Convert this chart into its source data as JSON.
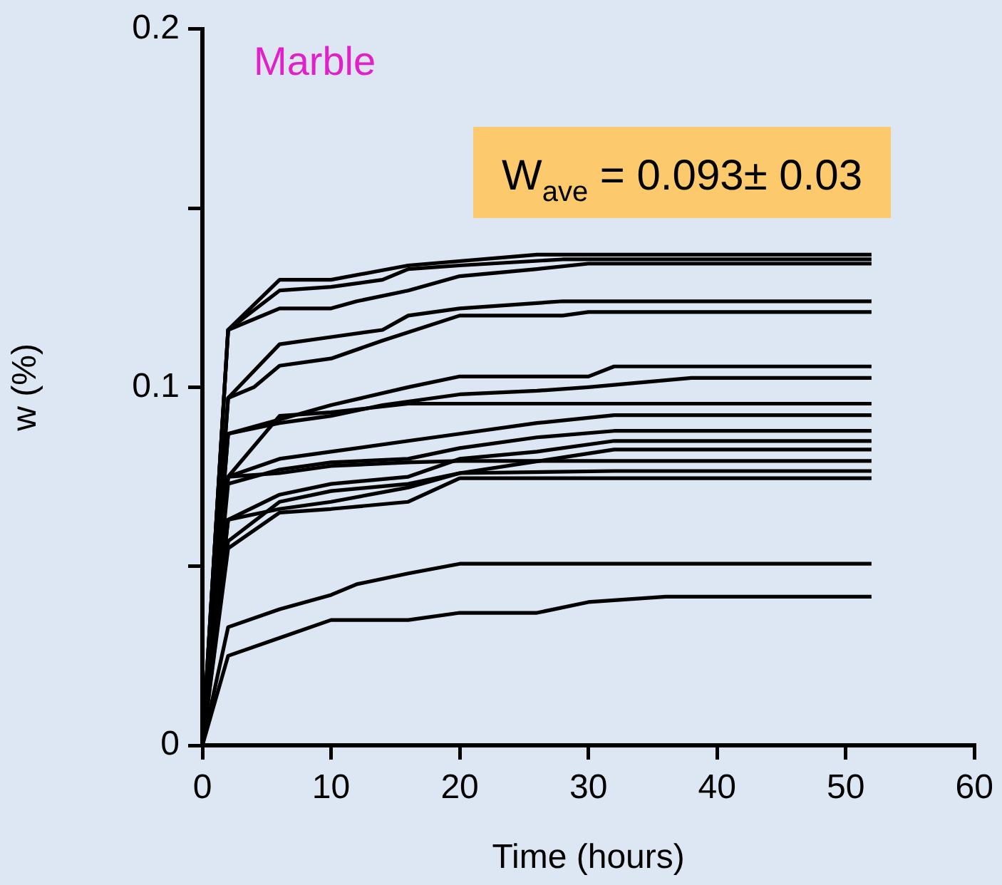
{
  "chart_data": {
    "type": "line",
    "title": "Marble",
    "xlabel": "Time (hours)",
    "ylabel": "w (%)",
    "annotations": [
      "W$_{ave}$ = 0.093± 0.03"
    ],
    "xlim": [
      0,
      60
    ],
    "xticks": [
      0,
      10,
      20,
      30,
      40,
      50,
      60
    ],
    "ylim": [
      0,
      0.2
    ],
    "yticks": [
      0,
      {
        "value": 0.05,
        "label": null
      },
      0.1,
      {
        "value": 0.15,
        "label": null
      },
      0.2
    ],
    "grid": false,
    "legend": false,
    "marker": "none",
    "line_style": "solid",
    "series": [
      {
        "color": "#000000",
        "x": [
          0,
          2,
          6,
          10,
          16,
          26,
          52
        ],
        "values": [
          0,
          0.116,
          0.13,
          0.13,
          0.134,
          0.137,
          0.137
        ]
      },
      {
        "color": "#000000",
        "x": [
          0,
          2,
          6,
          10,
          14,
          16,
          20,
          28,
          52
        ],
        "values": [
          0,
          0.116,
          0.127,
          0.128,
          0.13,
          0.133,
          0.134,
          0.1357,
          0.1357
        ]
      },
      {
        "color": "#000000",
        "x": [
          0,
          2,
          6,
          10,
          12,
          16,
          20,
          26,
          30,
          52
        ],
        "values": [
          0,
          0.116,
          0.122,
          0.122,
          0.124,
          0.127,
          0.131,
          0.133,
          0.1345,
          0.1345
        ]
      },
      {
        "color": "#000000",
        "x": [
          0,
          2,
          6,
          10,
          14,
          16,
          20,
          28,
          52
        ],
        "values": [
          0,
          0.097,
          0.112,
          0.114,
          0.116,
          0.12,
          0.122,
          0.124,
          0.124
        ]
      },
      {
        "color": "#000000",
        "x": [
          0,
          2,
          4,
          6,
          10,
          14,
          20,
          28,
          30,
          52
        ],
        "values": [
          0,
          0.097,
          0.1,
          0.106,
          0.108,
          0.113,
          0.12,
          0.12,
          0.121,
          0.121
        ]
      },
      {
        "color": "#000000",
        "x": [
          0,
          2,
          6,
          10,
          16,
          20,
          30,
          32,
          52
        ],
        "values": [
          0,
          0.087,
          0.091,
          0.095,
          0.1,
          0.103,
          0.103,
          0.1058,
          0.1058
        ]
      },
      {
        "color": "#000000",
        "x": [
          0,
          2,
          6,
          10,
          14,
          20,
          26,
          30,
          38,
          52
        ],
        "values": [
          0,
          0.087,
          0.09,
          0.092,
          0.095,
          0.098,
          0.099,
          0.1,
          0.1026,
          0.1026
        ]
      },
      {
        "color": "#000000",
        "x": [
          0,
          2,
          6,
          10,
          16,
          52
        ],
        "values": [
          0,
          0.075,
          0.092,
          0.093,
          0.0954,
          0.0954
        ]
      },
      {
        "color": "#000000",
        "x": [
          0,
          2,
          6,
          10,
          16,
          20,
          26,
          32,
          52
        ],
        "values": [
          0,
          0.075,
          0.08,
          0.082,
          0.085,
          0.087,
          0.09,
          0.0922,
          0.0922
        ]
      },
      {
        "color": "#000000",
        "x": [
          0,
          2,
          6,
          10,
          16,
          20,
          26,
          32,
          52
        ],
        "values": [
          0,
          0.073,
          0.077,
          0.079,
          0.08,
          0.083,
          0.086,
          0.0878,
          0.0878
        ]
      },
      {
        "color": "#000000",
        "x": [
          0,
          2,
          6,
          10,
          16,
          20,
          26,
          32,
          52
        ],
        "values": [
          0,
          0.063,
          0.07,
          0.073,
          0.075,
          0.08,
          0.082,
          0.085,
          0.085
        ]
      },
      {
        "color": "#000000",
        "x": [
          0,
          2,
          6,
          10,
          16,
          20,
          32,
          52
        ],
        "values": [
          0,
          0.057,
          0.068,
          0.071,
          0.073,
          0.076,
          0.0826,
          0.0826
        ]
      },
      {
        "color": "#000000",
        "x": [
          0,
          2,
          6,
          10,
          16,
          20,
          52
        ],
        "values": [
          0,
          0.075,
          0.076,
          0.078,
          0.079,
          0.0794,
          0.0794
        ]
      },
      {
        "color": "#000000",
        "x": [
          0,
          2,
          6,
          10,
          16,
          20,
          32,
          52
        ],
        "values": [
          0,
          0.063,
          0.066,
          0.068,
          0.072,
          0.076,
          0.0766,
          0.0766
        ]
      },
      {
        "color": "#000000",
        "x": [
          0,
          2,
          6,
          10,
          16,
          20,
          52
        ],
        "values": [
          0,
          0.055,
          0.065,
          0.066,
          0.068,
          0.0746,
          0.0746
        ]
      },
      {
        "color": "#000000",
        "x": [
          0,
          2,
          6,
          8,
          10,
          12,
          16,
          20,
          52
        ],
        "values": [
          0,
          0.033,
          0.038,
          0.04,
          0.042,
          0.045,
          0.048,
          0.0507,
          0.0507
        ]
      },
      {
        "color": "#000000",
        "x": [
          0,
          2,
          6,
          10,
          16,
          20,
          26,
          30,
          36,
          52
        ],
        "values": [
          0,
          0.025,
          0.03,
          0.035,
          0.035,
          0.037,
          0.037,
          0.04,
          0.0415,
          0.0415
        ]
      }
    ]
  }
}
